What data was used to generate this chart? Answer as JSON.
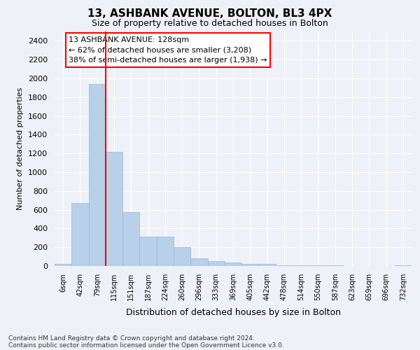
{
  "title": "13, ASHBANK AVENUE, BOLTON, BL3 4PX",
  "subtitle": "Size of property relative to detached houses in Bolton",
  "xlabel": "Distribution of detached houses by size in Bolton",
  "ylabel": "Number of detached properties",
  "bar_color": "#b8d0e8",
  "bar_edge_color": "#9ab8d8",
  "background_color": "#eef2f8",
  "fig_background_color": "#eef2f8",
  "grid_color": "#ffffff",
  "categories": [
    "6sqm",
    "42sqm",
    "79sqm",
    "115sqm",
    "151sqm",
    "187sqm",
    "224sqm",
    "260sqm",
    "296sqm",
    "333sqm",
    "369sqm",
    "405sqm",
    "442sqm",
    "478sqm",
    "514sqm",
    "550sqm",
    "587sqm",
    "623sqm",
    "659sqm",
    "696sqm",
    "732sqm"
  ],
  "values": [
    20,
    670,
    1940,
    1220,
    575,
    310,
    310,
    200,
    80,
    50,
    35,
    25,
    25,
    10,
    8,
    5,
    5,
    3,
    3,
    3,
    10
  ],
  "ylim": [
    0,
    2500
  ],
  "yticks": [
    0,
    200,
    400,
    600,
    800,
    1000,
    1200,
    1400,
    1600,
    1800,
    2000,
    2200,
    2400
  ],
  "red_line_x": 2.5,
  "annotation_title": "13 ASHBANK AVENUE: 128sqm",
  "annotation_line1": "← 62% of detached houses are smaller (3,208)",
  "annotation_line2": "38% of semi-detached houses are larger (1,938) →",
  "footer_line1": "Contains HM Land Registry data © Crown copyright and database right 2024.",
  "footer_line2": "Contains public sector information licensed under the Open Government Licence v3.0."
}
